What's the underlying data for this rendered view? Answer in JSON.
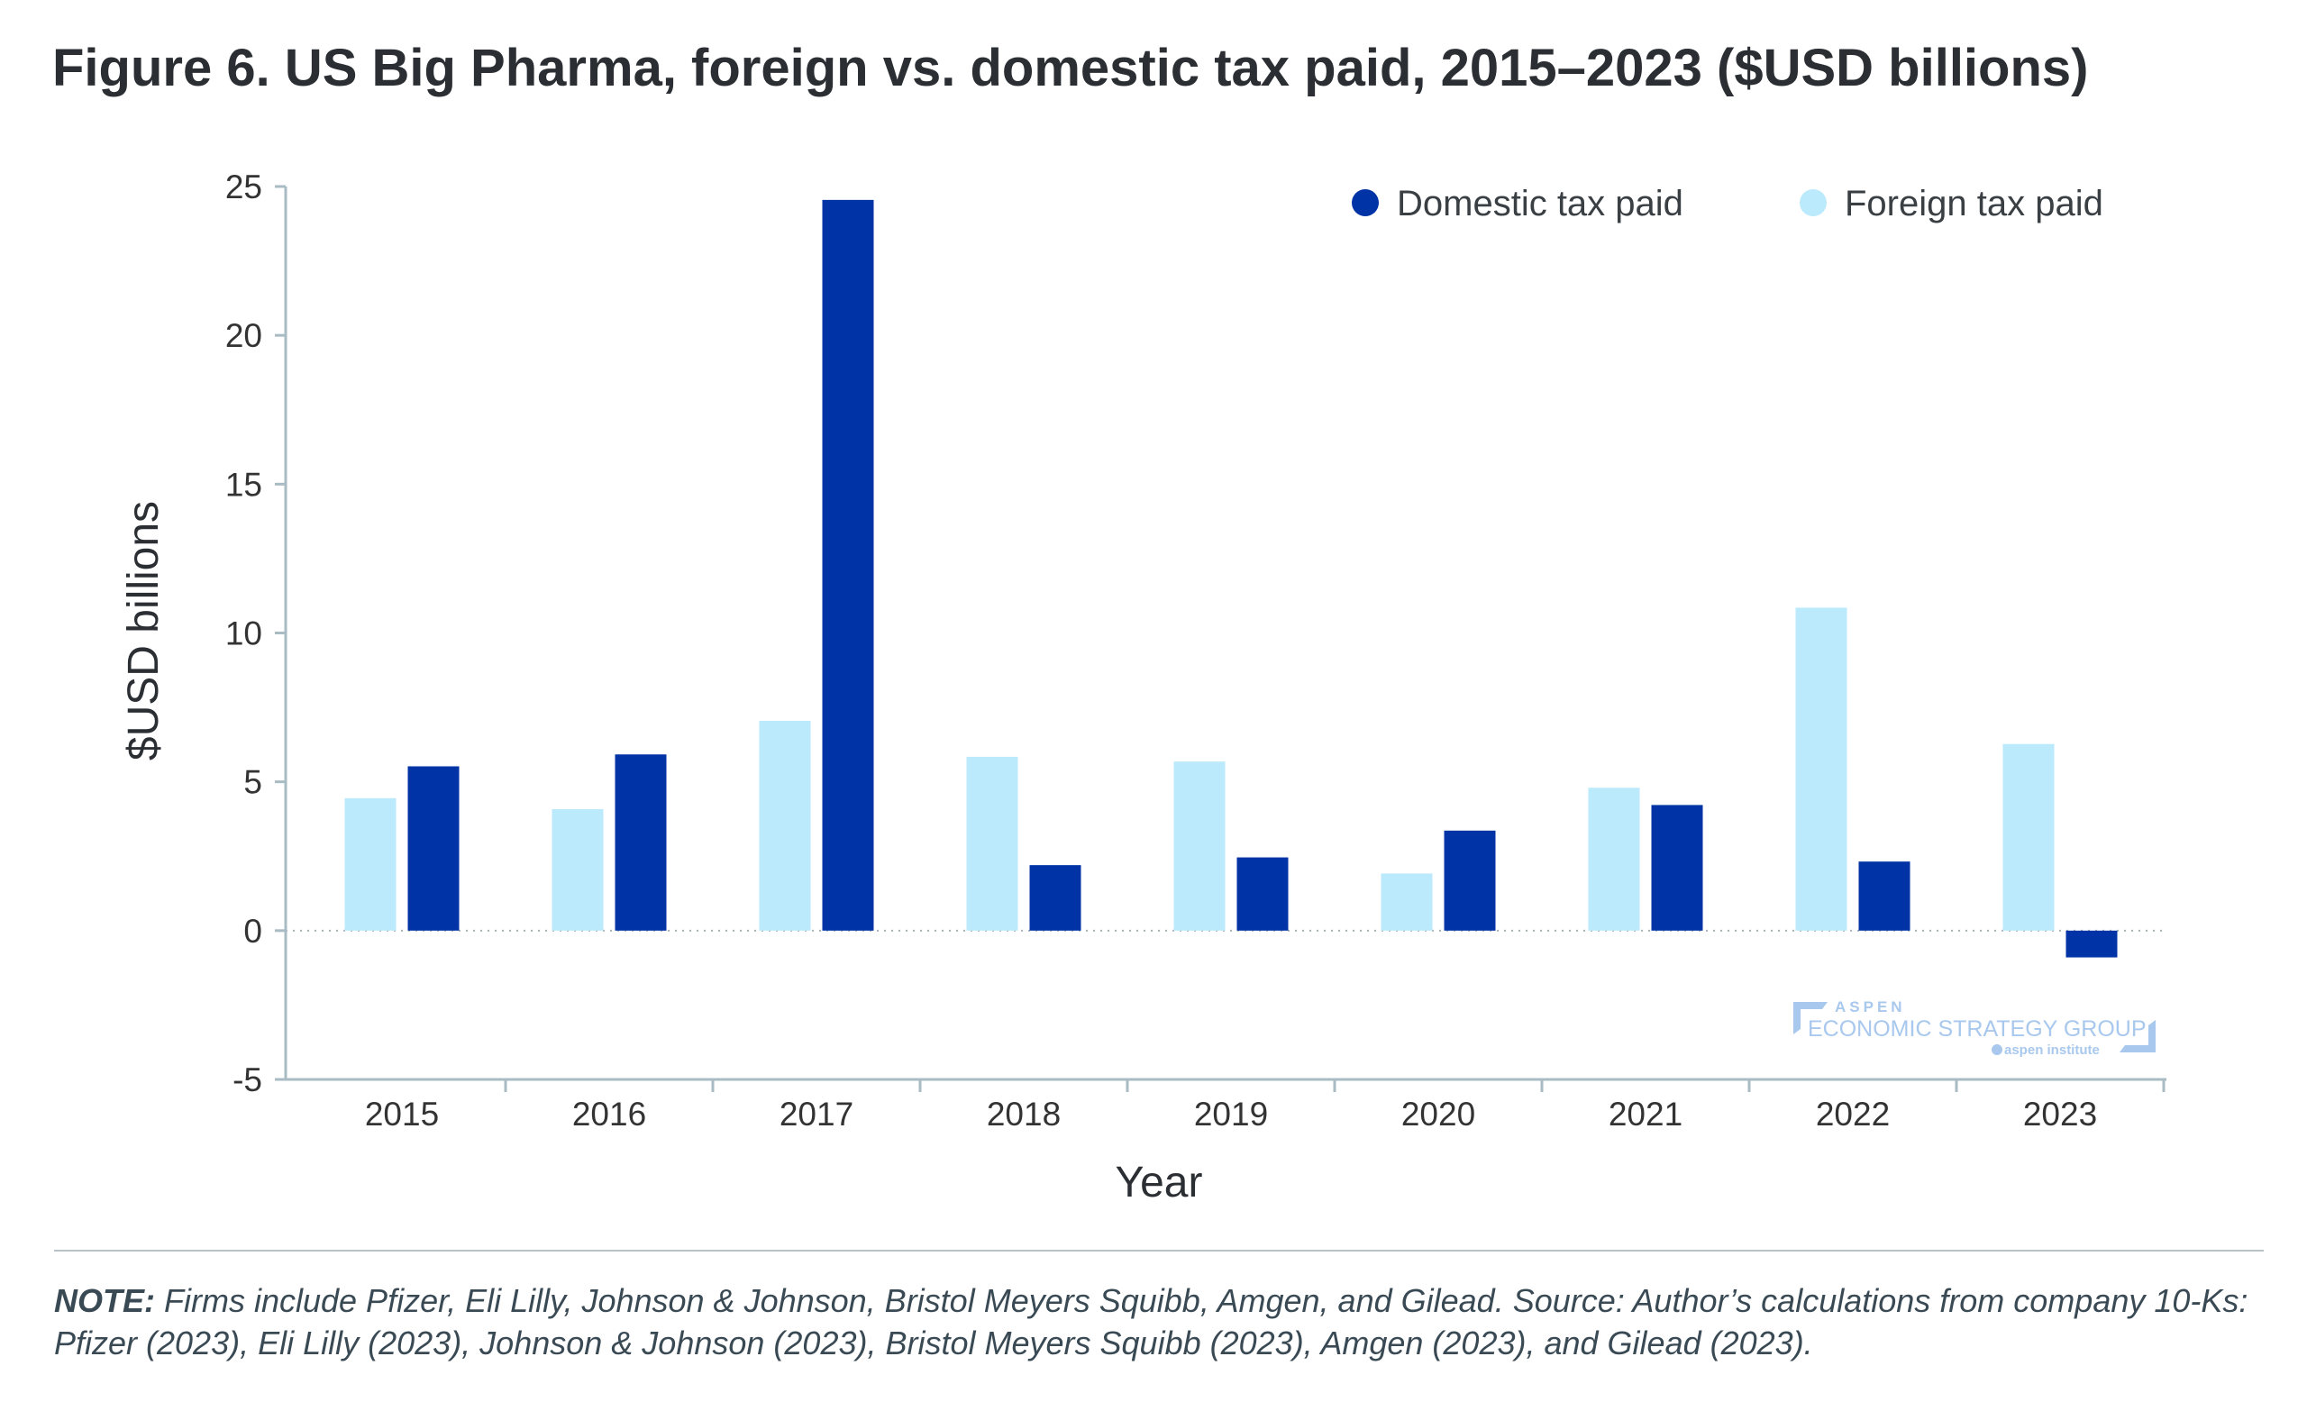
{
  "chart_data": {
    "type": "bar",
    "title": "Figure 6. US Big Pharma, foreign vs. domestic tax paid, 2015–2023 ($USD billions)",
    "xlabel": "Year",
    "ylabel": "$USD billions",
    "ylim": [
      -5,
      25
    ],
    "yticks": [
      "-5",
      "0",
      "5",
      "10",
      "15",
      "20",
      "25"
    ],
    "ytick_values": [
      -5,
      0,
      5,
      10,
      15,
      20,
      25
    ],
    "categories": [
      "2015",
      "2016",
      "2017",
      "2018",
      "2019",
      "2020",
      "2021",
      "2022",
      "2023"
    ],
    "legend_position": "top-right",
    "series": [
      {
        "name": "Foreign tax paid",
        "color": "#bbeafc",
        "values": [
          4.45,
          4.08,
          7.05,
          5.84,
          5.68,
          1.92,
          4.8,
          10.85,
          6.27
        ]
      },
      {
        "name": "Domestic tax paid",
        "color": "#0033a6",
        "values": [
          5.52,
          5.92,
          24.55,
          2.2,
          2.46,
          3.36,
          4.22,
          2.32,
          -0.9
        ]
      }
    ],
    "legend": [
      "Domestic tax paid",
      "Foreign tax paid"
    ]
  },
  "watermark": {
    "line1": "ASPEN",
    "line2": "ECONOMIC STRATEGY GROUP",
    "line3": "aspen institute"
  },
  "note": {
    "label": "NOTE:",
    "text": " Firms include Pfizer, Eli Lilly, Johnson & Johnson, Bristol Meyers Squibb, Amgen, and Gilead. Source: Author’s calculations from company 10-Ks: Pfizer (2023), Eli Lilly (2023), Johnson & Johnson (2023), Bristol Meyers Squibb (2023), Amgen (2023), and Gilead (2023)."
  }
}
